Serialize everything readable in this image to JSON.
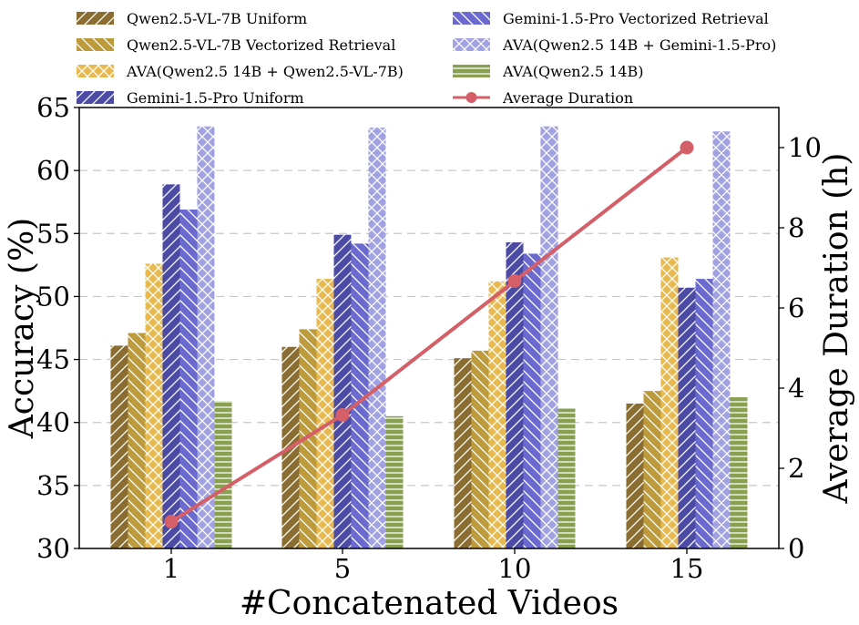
{
  "chart_data": {
    "type": "bar",
    "title": "",
    "xlabel": "#Concatenated Videos",
    "ylabel": "Accuracy (%)",
    "y2label": "Average Duration (h)",
    "categories": [
      "1",
      "5",
      "10",
      "15"
    ],
    "ylim": [
      30,
      65
    ],
    "yticks": [
      "30",
      "35",
      "40",
      "45",
      "50",
      "55",
      "60",
      "65"
    ],
    "y2lim": [
      0,
      11
    ],
    "y2ticks": [
      "0",
      "2",
      "4",
      "6",
      "8",
      "10"
    ],
    "grid": "horizontal dashed",
    "legend_position": "top",
    "series": [
      {
        "name": "Qwen2.5-VL-7B Uniform",
        "values": [
          46.1,
          46.0,
          45.1,
          41.5
        ],
        "color": "#8b6d32",
        "hatch": "diagonal"
      },
      {
        "name": "Qwen2.5-VL-7B Vectorized Retrieval",
        "values": [
          47.1,
          47.4,
          45.7,
          42.5
        ],
        "color": "#bd9a3c",
        "hatch": "backdiagonal"
      },
      {
        "name": "AVA(Qwen2.5 14B + Qwen2.5-VL-7B)",
        "values": [
          52.6,
          51.4,
          51.2,
          53.1
        ],
        "color": "#e8b94f",
        "hatch": "cross"
      },
      {
        "name": "Gemini-1.5-Pro Uniform",
        "values": [
          58.9,
          54.9,
          54.3,
          50.7
        ],
        "color": "#4b4ba6",
        "hatch": "diagonal"
      },
      {
        "name": "Gemini-1.5-Pro Vectorized Retrieval",
        "values": [
          56.9,
          54.2,
          53.4,
          51.4
        ],
        "color": "#6b6bcf",
        "hatch": "backdiagonal"
      },
      {
        "name": "AVA(Qwen2.5 14B + Gemini-1.5-Pro)",
        "values": [
          63.5,
          63.4,
          63.5,
          63.1
        ],
        "color": "#a2a2e3",
        "hatch": "cross"
      },
      {
        "name": "AVA(Qwen2.5 14B)",
        "values": [
          41.7,
          40.5,
          41.1,
          42.0
        ],
        "color": "#88a04f",
        "hatch": "horizontal"
      }
    ],
    "line_series": {
      "name": "Average Duration",
      "axis": "right",
      "values": [
        0.67,
        3.33,
        6.67,
        10.0
      ],
      "color": "#d55f68"
    }
  }
}
